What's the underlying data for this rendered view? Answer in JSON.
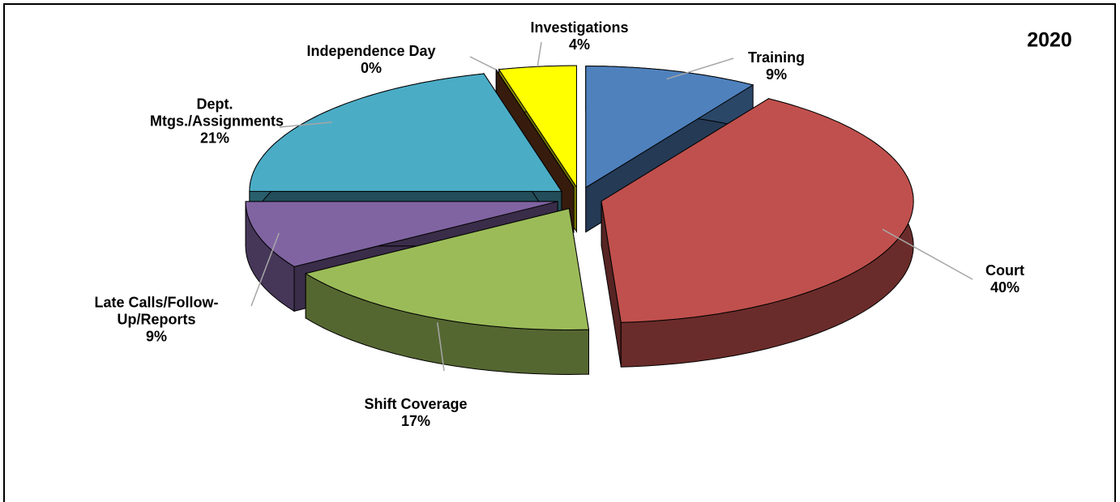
{
  "chart_data": {
    "type": "pie",
    "title": "2020",
    "categories": [
      "Training",
      "Court",
      "Shift Coverage",
      "Late Calls/Follow-Up/Reports",
      "Dept. Mtgs./Assignments",
      "Independence Day",
      "Investigations"
    ],
    "values": [
      9,
      40,
      17,
      9,
      21,
      0,
      4
    ],
    "value_labels": [
      "9%",
      "40%",
      "17%",
      "9%",
      "21%",
      "0%",
      "4%"
    ],
    "colors": [
      "#4f81bd",
      "#c0504d",
      "#9bbb59",
      "#8064a2",
      "#4bacc6",
      "#7b3f1d",
      "#ffff00"
    ]
  }
}
